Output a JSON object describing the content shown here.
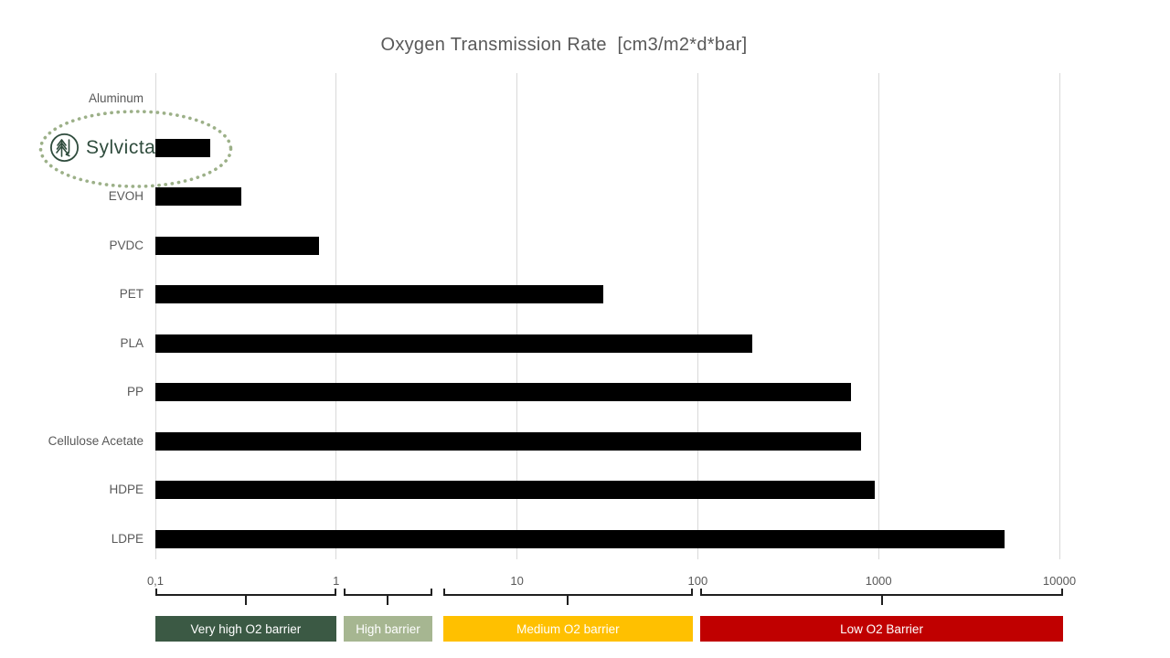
{
  "page": {
    "title": "Oxygen Transmission Rate  [cm3/m2*d*bar]"
  },
  "logo": {
    "text": "Sylvicta",
    "icon": "tree-in-circle-icon",
    "color": "#2f4c3d"
  },
  "colors": {
    "bar": "#000000",
    "grid": "#d9d9d9",
    "text": "#595959",
    "bracket": "#1f1f1f",
    "highlight_ellipse": "#9cb088",
    "zone_very_high": "#3b5944",
    "zone_high": "#a6b691",
    "zone_medium": "#ffc000",
    "zone_low": "#c00000"
  },
  "chart_data": {
    "type": "bar",
    "orientation": "horizontal",
    "x_scale": "log",
    "title": "Oxygen Transmission Rate  [cm3/m2*d*bar]",
    "xlim": [
      0.1,
      10000
    ],
    "x_ticks": [
      "0,1",
      "1",
      "10",
      "100",
      "1000",
      "10000"
    ],
    "x_tick_values": [
      0.1,
      1,
      10,
      100,
      1000,
      10000
    ],
    "grid": "vertical",
    "categories": [
      "Aluminum",
      "Sylvicta",
      "EVOH",
      "PVDC",
      "PET",
      "PLA",
      "PP",
      "Cellulose Acetate",
      "HDPE",
      "LDPE"
    ],
    "values": [
      null,
      0.2,
      0.3,
      0.8,
      30,
      200,
      700,
      800,
      950,
      5000
    ],
    "highlight_category": "Sylvicta",
    "zones": [
      {
        "label": "Very high O2 barrier",
        "from": 0.1,
        "to": 1.0,
        "color": "#3b5944"
      },
      {
        "label": "High barrier",
        "from": 1.1,
        "to": 3.4,
        "color": "#a6b691"
      },
      {
        "label": "Medium O2 barrier",
        "from": 3.9,
        "to": 94,
        "color": "#ffc000"
      },
      {
        "label": "Low O2 Barrier",
        "from": 103,
        "to": 10500,
        "color": "#c00000"
      }
    ]
  }
}
